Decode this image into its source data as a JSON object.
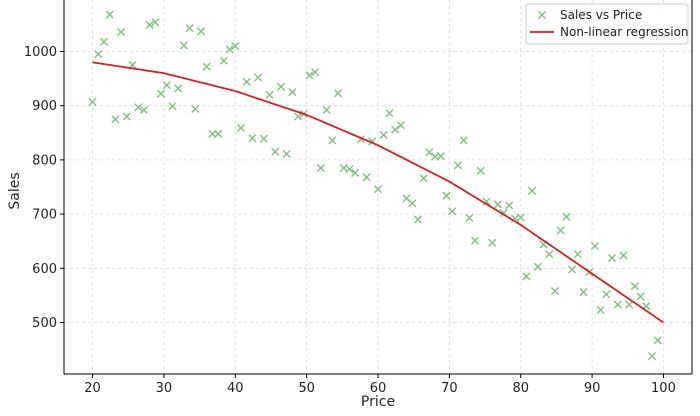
{
  "chart_data": {
    "type": "scatter",
    "title": "",
    "xlabel": "Price",
    "ylabel": "Sales",
    "xlim": [
      16,
      104
    ],
    "ylim": [
      405,
      1095
    ],
    "x_ticks": [
      20,
      30,
      40,
      50,
      60,
      70,
      80,
      90,
      100
    ],
    "y_ticks": [
      500,
      600,
      700,
      800,
      900,
      1000
    ],
    "grid": true,
    "legend_position": "top-right",
    "colors": {
      "scatter": "#7fc07f",
      "regression": "#d42020",
      "grid": "#d9d9d9",
      "axis": "#000000"
    },
    "series": [
      {
        "name": "Sales vs Price",
        "type": "scatter",
        "marker": "x",
        "points": [
          [
            20.0,
            907
          ],
          [
            20.8,
            995
          ],
          [
            21.6,
            1018
          ],
          [
            22.4,
            1068
          ],
          [
            23.2,
            875
          ],
          [
            24.0,
            1036
          ],
          [
            24.8,
            880
          ],
          [
            25.6,
            975
          ],
          [
            26.4,
            897
          ],
          [
            27.2,
            892
          ],
          [
            28.0,
            1049
          ],
          [
            28.8,
            1054
          ],
          [
            29.6,
            922
          ],
          [
            30.4,
            938
          ],
          [
            31.2,
            899
          ],
          [
            32.0,
            932
          ],
          [
            32.8,
            1011
          ],
          [
            33.6,
            1043
          ],
          [
            34.4,
            894
          ],
          [
            35.2,
            1037
          ],
          [
            36.0,
            972
          ],
          [
            36.8,
            848
          ],
          [
            37.6,
            848
          ],
          [
            38.4,
            983
          ],
          [
            39.2,
            1004
          ],
          [
            40.0,
            1010
          ],
          [
            40.8,
            859
          ],
          [
            41.6,
            944
          ],
          [
            42.4,
            840
          ],
          [
            43.2,
            952
          ],
          [
            44.0,
            839
          ],
          [
            44.8,
            920
          ],
          [
            45.6,
            815
          ],
          [
            46.4,
            935
          ],
          [
            47.2,
            811
          ],
          [
            48.0,
            925
          ],
          [
            48.8,
            880
          ],
          [
            49.6,
            885
          ],
          [
            50.4,
            956
          ],
          [
            51.2,
            962
          ],
          [
            52.0,
            785
          ],
          [
            52.8,
            892
          ],
          [
            53.6,
            836
          ],
          [
            54.4,
            923
          ],
          [
            55.2,
            785
          ],
          [
            56.0,
            783
          ],
          [
            56.8,
            776
          ],
          [
            57.6,
            838
          ],
          [
            58.4,
            768
          ],
          [
            59.2,
            834
          ],
          [
            60.0,
            746
          ],
          [
            60.8,
            846
          ],
          [
            61.6,
            886
          ],
          [
            62.4,
            856
          ],
          [
            63.2,
            864
          ],
          [
            64.0,
            729
          ],
          [
            64.8,
            720
          ],
          [
            65.6,
            690
          ],
          [
            66.4,
            766
          ],
          [
            67.2,
            814
          ],
          [
            68.0,
            806
          ],
          [
            68.8,
            807
          ],
          [
            69.6,
            734
          ],
          [
            70.4,
            705
          ],
          [
            71.2,
            790
          ],
          [
            72.0,
            836
          ],
          [
            72.8,
            693
          ],
          [
            73.6,
            651
          ],
          [
            74.4,
            780
          ],
          [
            75.2,
            723
          ],
          [
            76.0,
            647
          ],
          [
            76.8,
            718
          ],
          [
            77.6,
            702
          ],
          [
            78.4,
            716
          ],
          [
            79.2,
            692
          ],
          [
            80.0,
            694
          ],
          [
            80.8,
            585
          ],
          [
            81.6,
            743
          ],
          [
            82.4,
            603
          ],
          [
            83.2,
            644
          ],
          [
            84.0,
            626
          ],
          [
            84.8,
            558
          ],
          [
            85.6,
            670
          ],
          [
            86.4,
            695
          ],
          [
            87.2,
            598
          ],
          [
            88.0,
            626
          ],
          [
            88.8,
            556
          ],
          [
            89.6,
            593
          ],
          [
            90.4,
            641
          ],
          [
            91.2,
            523
          ],
          [
            92.0,
            552
          ],
          [
            92.8,
            619
          ],
          [
            93.6,
            533
          ],
          [
            94.4,
            624
          ],
          [
            95.2,
            533
          ],
          [
            96.0,
            567
          ],
          [
            96.8,
            548
          ],
          [
            97.6,
            530
          ],
          [
            98.4,
            438
          ],
          [
            99.2,
            467
          ]
        ]
      },
      {
        "name": "Non-linear regression",
        "type": "line",
        "x_range": [
          20,
          100
        ],
        "curve": {
          "form": "quadratic",
          "a": 0,
          "b": 2.0,
          "c": 980,
          "anchor_x": 20,
          "anchor_y": 980,
          "end_y": 500
        },
        "samples": [
          [
            20,
            980
          ],
          [
            30,
            960
          ],
          [
            40,
            927
          ],
          [
            50,
            883
          ],
          [
            60,
            827
          ],
          [
            70,
            760
          ],
          [
            80,
            680
          ],
          [
            90,
            590
          ],
          [
            100,
            500
          ]
        ]
      }
    ]
  }
}
